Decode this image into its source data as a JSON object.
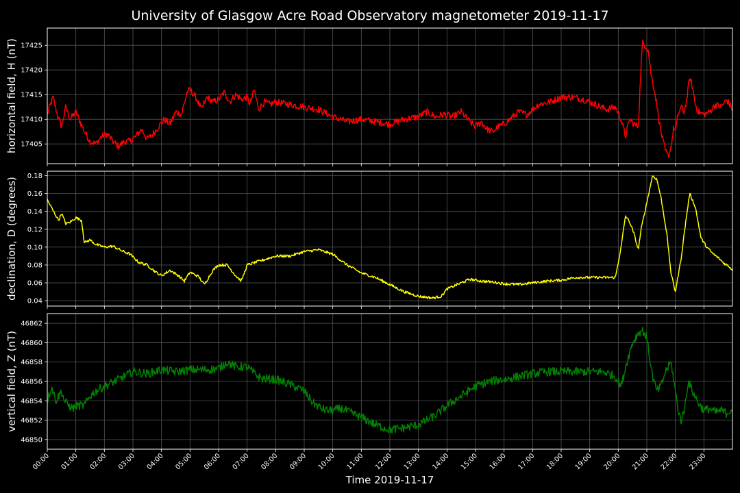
{
  "title": "University of Glasgow Acre Road Observatory magnetometer 2019-11-17",
  "xlabel": "Time 2019-11-17",
  "colors": {
    "background": "#000000",
    "grid": "#555555",
    "axes": "#ffffff"
  },
  "chart_data": [
    {
      "type": "line",
      "ylabel": "horizontal field, H (nT)",
      "color": "#ff0000",
      "ylim": [
        17401,
        17428.5
      ],
      "yticks": [
        "17405",
        "17410",
        "17415",
        "17420",
        "17425"
      ],
      "grid": true,
      "x": [
        0.0,
        0.2,
        0.35,
        0.5,
        0.65,
        0.8,
        1.0,
        1.15,
        1.3,
        1.5,
        1.7,
        1.9,
        2.1,
        2.3,
        2.5,
        2.7,
        2.9,
        3.1,
        3.3,
        3.5,
        3.7,
        3.9,
        4.1,
        4.3,
        4.5,
        4.7,
        4.9,
        5.0,
        5.2,
        5.4,
        5.6,
        5.8,
        6.0,
        6.2,
        6.4,
        6.6,
        6.8,
        7.0,
        7.1,
        7.25,
        7.4,
        7.6,
        7.8,
        8.0,
        8.5,
        9.0,
        9.5,
        10.0,
        10.5,
        11.0,
        11.5,
        12.0,
        12.5,
        13.0,
        13.3,
        13.6,
        13.9,
        14.2,
        14.5,
        14.8,
        15.0,
        15.2,
        15.4,
        15.6,
        15.8,
        16.0,
        16.2,
        16.5,
        16.8,
        17.2,
        17.6,
        18.0,
        18.4,
        18.8,
        19.2,
        19.6,
        19.9,
        20.1,
        20.25,
        20.4,
        20.55,
        20.7,
        20.8,
        20.85,
        20.95,
        21.05,
        21.15,
        21.25,
        21.35,
        21.45,
        21.55,
        21.65,
        21.75,
        21.85,
        21.95,
        22.0,
        22.1,
        22.2,
        22.3,
        22.4,
        22.5,
        22.6,
        22.7,
        22.8,
        23.0,
        23.2,
        23.4,
        23.6,
        23.8,
        24.0
      ],
      "values": [
        17411.0,
        17414.5,
        17411.0,
        17408.5,
        17412.5,
        17410.0,
        17411.5,
        17409.5,
        17407.5,
        17405.5,
        17405.0,
        17406.5,
        17407.0,
        17405.5,
        17404.5,
        17405.5,
        17405.5,
        17406.5,
        17408.0,
        17406.0,
        17407.0,
        17408.5,
        17410.0,
        17409.0,
        17411.5,
        17411.0,
        17415.5,
        17416.0,
        17414.5,
        17412.0,
        17414.5,
        17413.5,
        17414.0,
        17415.5,
        17413.5,
        17415.0,
        17414.0,
        17414.5,
        17413.0,
        17416.0,
        17412.0,
        17413.5,
        17413.0,
        17413.5,
        17413.0,
        17412.5,
        17412.0,
        17410.5,
        17409.5,
        17410.0,
        17409.5,
        17409.0,
        17410.0,
        17410.5,
        17411.5,
        17410.5,
        17411.0,
        17410.5,
        17411.5,
        17409.5,
        17408.5,
        17409.5,
        17408.0,
        17407.5,
        17408.5,
        17409.0,
        17410.0,
        17411.5,
        17411.0,
        17413.0,
        17413.5,
        17414.5,
        17414.5,
        17414.0,
        17413.0,
        17412.0,
        17412.5,
        17410.0,
        17406.5,
        17410.0,
        17409.0,
        17408.5,
        17421.0,
        17425.5,
        17425.0,
        17424.0,
        17419.0,
        17416.5,
        17413.0,
        17409.0,
        17406.0,
        17403.5,
        17402.5,
        17404.5,
        17408.5,
        17407.5,
        17411.0,
        17412.5,
        17411.5,
        17414.0,
        17418.5,
        17416.5,
        17413.0,
        17411.5,
        17411.0,
        17411.5,
        17413.0,
        17412.5,
        17414.0,
        17412.0
      ],
      "noise": 0.7
    },
    {
      "type": "line",
      "ylabel": "declination, D (degrees)",
      "color": "#ffff00",
      "ylim": [
        0.034,
        0.185
      ],
      "yticks": [
        "0.04",
        "0.06",
        "0.08",
        "0.10",
        "0.12",
        "0.14",
        "0.16",
        "0.18"
      ],
      "grid": true,
      "x": [
        0.0,
        0.2,
        0.4,
        0.5,
        0.65,
        0.8,
        1.0,
        1.2,
        1.3,
        1.5,
        1.7,
        2.0,
        2.3,
        2.6,
        2.9,
        3.2,
        3.5,
        3.8,
        4.0,
        4.3,
        4.6,
        4.8,
        5.0,
        5.3,
        5.5,
        5.8,
        6.0,
        6.3,
        6.6,
        6.8,
        7.0,
        7.2,
        7.5,
        8.0,
        8.5,
        9.0,
        9.5,
        10.0,
        10.5,
        11.0,
        11.5,
        12.0,
        12.5,
        13.0,
        13.5,
        13.8,
        14.0,
        14.5,
        14.8,
        15.2,
        15.6,
        16.0,
        16.5,
        17.0,
        17.5,
        18.0,
        18.5,
        19.0,
        19.5,
        19.9,
        20.1,
        20.25,
        20.4,
        20.55,
        20.7,
        20.8,
        21.0,
        21.2,
        21.35,
        21.5,
        21.7,
        21.85,
        22.0,
        22.2,
        22.35,
        22.5,
        22.7,
        22.9,
        23.1,
        23.3,
        23.5,
        23.7,
        23.9,
        24.0
      ],
      "values": [
        0.153,
        0.141,
        0.13,
        0.138,
        0.126,
        0.128,
        0.133,
        0.13,
        0.105,
        0.108,
        0.103,
        0.1,
        0.101,
        0.096,
        0.092,
        0.083,
        0.08,
        0.072,
        0.068,
        0.074,
        0.068,
        0.062,
        0.072,
        0.067,
        0.058,
        0.074,
        0.08,
        0.08,
        0.068,
        0.062,
        0.08,
        0.082,
        0.085,
        0.09,
        0.09,
        0.095,
        0.097,
        0.092,
        0.08,
        0.071,
        0.066,
        0.058,
        0.05,
        0.045,
        0.043,
        0.045,
        0.053,
        0.06,
        0.064,
        0.062,
        0.061,
        0.059,
        0.058,
        0.06,
        0.062,
        0.063,
        0.066,
        0.066,
        0.066,
        0.066,
        0.1,
        0.135,
        0.128,
        0.115,
        0.097,
        0.12,
        0.15,
        0.18,
        0.176,
        0.155,
        0.115,
        0.07,
        0.05,
        0.087,
        0.125,
        0.16,
        0.145,
        0.11,
        0.1,
        0.093,
        0.088,
        0.082,
        0.078,
        0.074
      ],
      "noise": 0.0015
    },
    {
      "type": "line",
      "ylabel": "vertical field, Z (nT)",
      "color": "#008000",
      "ylim": [
        46849.0,
        46863.0
      ],
      "yticks": [
        "46850",
        "46852",
        "46854",
        "46856",
        "46858",
        "46860",
        "46862"
      ],
      "grid": true,
      "x": [
        0.0,
        0.15,
        0.3,
        0.5,
        0.6,
        0.75,
        0.9,
        1.0,
        1.3,
        1.5,
        1.7,
        2.0,
        2.5,
        3.0,
        3.5,
        4.0,
        4.5,
        5.0,
        5.5,
        6.0,
        6.3,
        6.6,
        7.0,
        7.3,
        7.5,
        8.0,
        8.5,
        9.0,
        9.3,
        9.6,
        9.8,
        10.0,
        10.3,
        10.6,
        11.0,
        11.5,
        12.0,
        12.5,
        13.0,
        13.3,
        13.6,
        14.0,
        14.5,
        15.0,
        15.5,
        16.0,
        16.5,
        17.0,
        17.5,
        18.0,
        18.5,
        19.0,
        19.5,
        19.9,
        20.1,
        20.3,
        20.5,
        20.7,
        20.85,
        21.0,
        21.1,
        21.2,
        21.35,
        21.5,
        21.65,
        21.85,
        22.0,
        22.1,
        22.2,
        22.3,
        22.45,
        22.6,
        22.8,
        23.0,
        23.2,
        23.4,
        23.6,
        23.8,
        24.0
      ],
      "values": [
        46854.0,
        46855.5,
        46854.0,
        46855.0,
        46854.0,
        46853.5,
        46853.2,
        46853.5,
        46853.5,
        46854.5,
        46855.0,
        46855.5,
        46856.2,
        46857.0,
        46856.8,
        46857.2,
        46857.0,
        46857.2,
        46857.2,
        46857.3,
        46858.0,
        46857.5,
        46857.5,
        46856.7,
        46856.3,
        46856.2,
        46855.7,
        46855.0,
        46853.8,
        46853.2,
        46853.0,
        46853.0,
        46853.2,
        46852.8,
        46852.3,
        46851.5,
        46851.0,
        46851.2,
        46851.5,
        46852.0,
        46852.5,
        46853.5,
        46854.5,
        46855.5,
        46856.0,
        46856.2,
        46856.5,
        46856.8,
        46857.0,
        46857.0,
        46857.0,
        46857.0,
        46857.0,
        46856.5,
        46855.5,
        46858.0,
        46860.0,
        46861.0,
        46861.3,
        46860.5,
        46858.5,
        46856.5,
        46855.0,
        46855.5,
        46857.0,
        46858.0,
        46855.0,
        46853.0,
        46852.0,
        46852.8,
        46856.0,
        46855.0,
        46853.8,
        46853.0,
        46853.2,
        46852.8,
        46853.0,
        46852.7,
        46853.2
      ],
      "noise": 0.45
    }
  ],
  "xticks": [
    "00:00",
    "01:00",
    "02:00",
    "03:00",
    "04:00",
    "05:00",
    "06:00",
    "07:00",
    "08:00",
    "09:00",
    "10:00",
    "11:00",
    "12:00",
    "13:00",
    "14:00",
    "15:00",
    "16:00",
    "17:00",
    "18:00",
    "19:00",
    "20:00",
    "21:00",
    "22:00",
    "23:00"
  ],
  "xlim": [
    0,
    24
  ]
}
